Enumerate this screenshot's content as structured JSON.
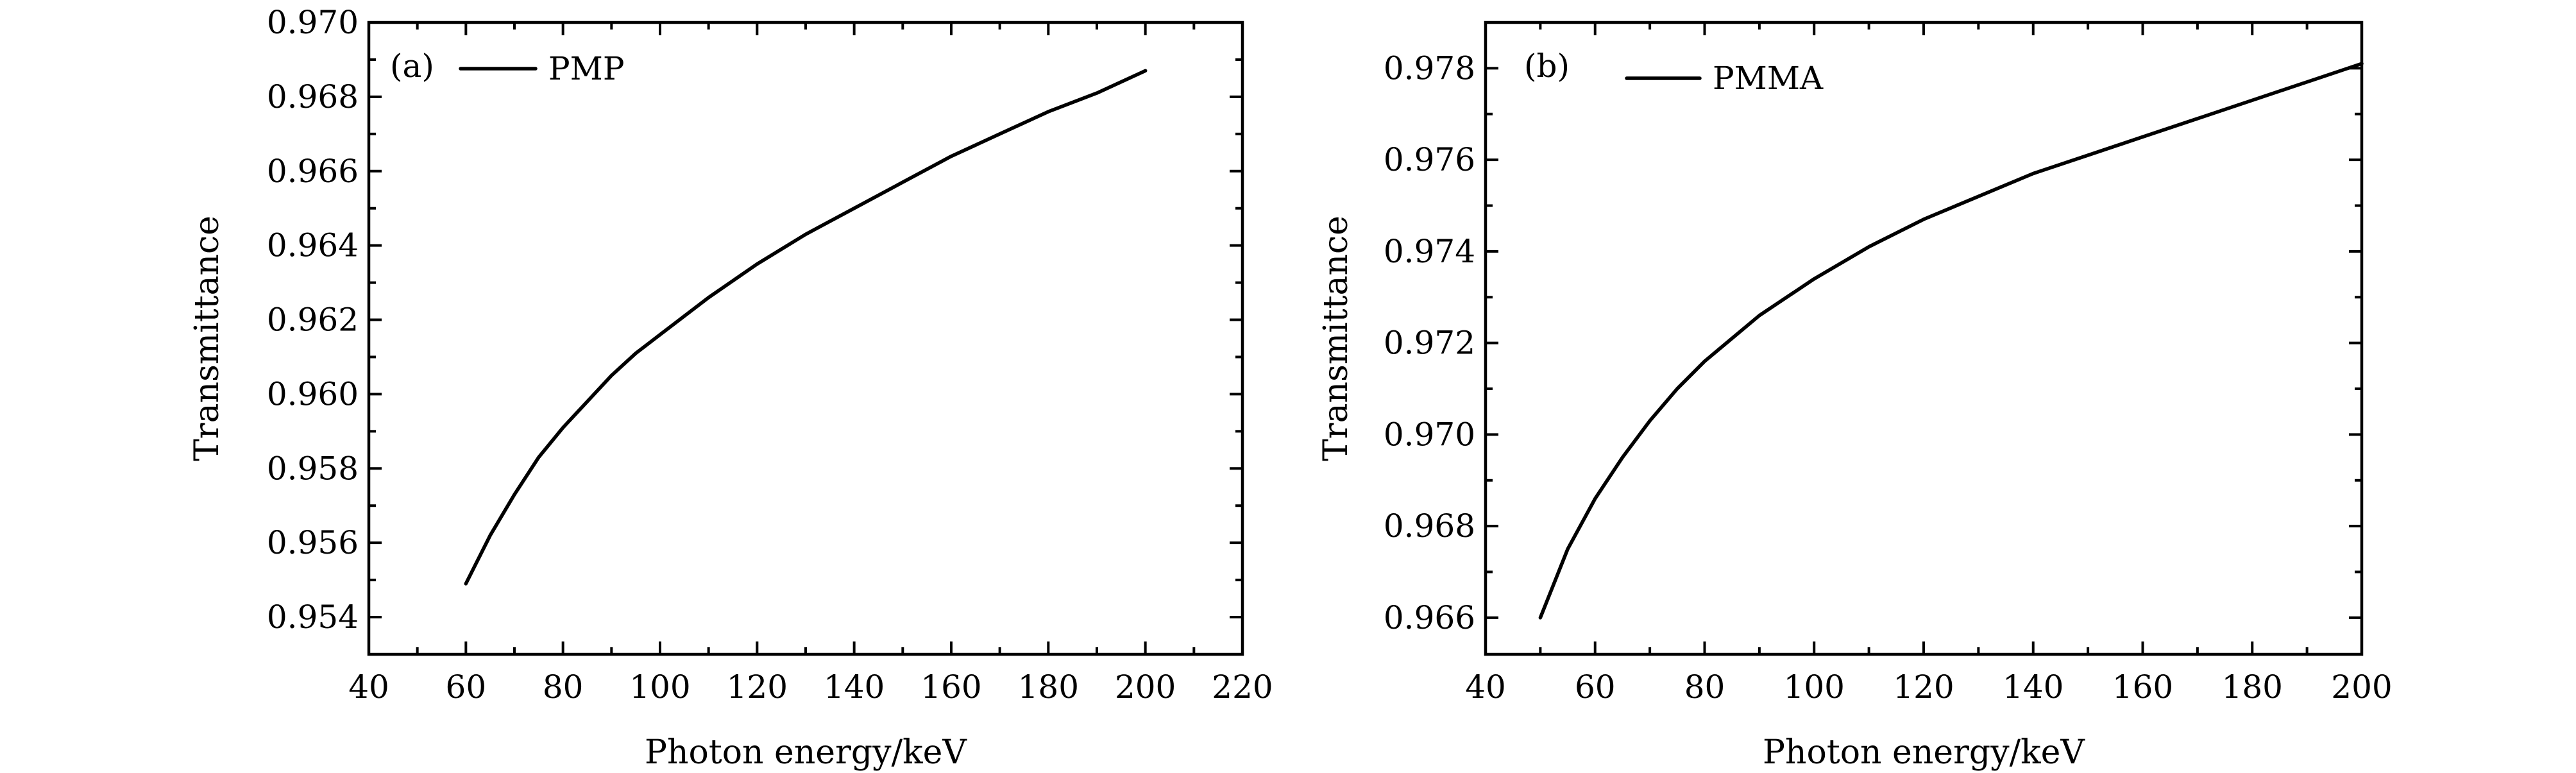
{
  "chart_data": [
    {
      "type": "line",
      "panel_label": "(a)",
      "xlabel": "Photon energy/keV",
      "ylabel": "Transmittance",
      "xlim": [
        40,
        220
      ],
      "ylim": [
        0.953,
        0.97
      ],
      "xticks": [
        40,
        60,
        80,
        100,
        120,
        140,
        160,
        180,
        200,
        220
      ],
      "xtick_labels": [
        "40",
        "60",
        "80",
        "100",
        "120",
        "140",
        "160",
        "180",
        "200",
        "220"
      ],
      "yticks": [
        0.954,
        0.956,
        0.958,
        0.96,
        0.962,
        0.964,
        0.966,
        0.968,
        0.97
      ],
      "ytick_labels": [
        "0.954",
        "0.956",
        "0.958",
        "0.960",
        "0.962",
        "0.964",
        "0.966",
        "0.968",
        "0.970"
      ],
      "grid": false,
      "legend_position": "top-left",
      "series": [
        {
          "name": "PMP",
          "color": "#000000",
          "x": [
            60,
            65,
            70,
            75,
            80,
            85,
            90,
            95,
            100,
            110,
            120,
            130,
            140,
            150,
            160,
            170,
            180,
            190,
            200
          ],
          "y": [
            0.9549,
            0.9562,
            0.9573,
            0.9583,
            0.9591,
            0.9598,
            0.9605,
            0.9611,
            0.9616,
            0.9626,
            0.9635,
            0.9643,
            0.965,
            0.9657,
            0.9664,
            0.967,
            0.9676,
            0.9681,
            0.9687
          ]
        }
      ]
    },
    {
      "type": "line",
      "panel_label": "(b)",
      "xlabel": "Photon energy/keV",
      "ylabel": "Transmittance",
      "xlim": [
        40,
        200
      ],
      "ylim": [
        0.9652,
        0.979
      ],
      "xticks": [
        40,
        60,
        80,
        100,
        120,
        140,
        160,
        180,
        200
      ],
      "xtick_labels": [
        "40",
        "60",
        "80",
        "100",
        "120",
        "140",
        "160",
        "180",
        "200"
      ],
      "yticks": [
        0.966,
        0.968,
        0.97,
        0.972,
        0.974,
        0.976,
        0.978
      ],
      "ytick_labels": [
        "0.966",
        "0.968",
        "0.970",
        "0.972",
        "0.974",
        "0.976",
        "0.978"
      ],
      "grid": false,
      "legend_position": "top-left",
      "series": [
        {
          "name": "PMMA",
          "color": "#000000",
          "x": [
            50,
            55,
            60,
            65,
            70,
            75,
            80,
            90,
            100,
            110,
            120,
            130,
            140,
            150,
            160,
            170,
            180,
            190,
            200
          ],
          "y": [
            0.966,
            0.9675,
            0.9686,
            0.9695,
            0.9703,
            0.971,
            0.9716,
            0.9726,
            0.9734,
            0.9741,
            0.9747,
            0.9752,
            0.9757,
            0.9761,
            0.9765,
            0.9769,
            0.9773,
            0.9777,
            0.9781
          ]
        }
      ]
    }
  ]
}
